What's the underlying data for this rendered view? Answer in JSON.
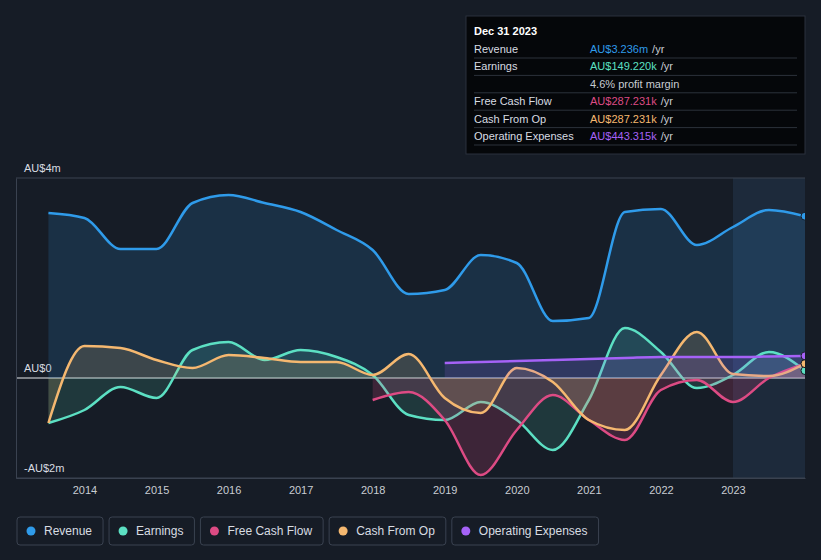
{
  "chart_data": {
    "type": "line",
    "x": [
      2013.5,
      2014,
      2014.5,
      2015,
      2015.5,
      2016,
      2016.5,
      2017,
      2017.5,
      2018,
      2018.5,
      2019,
      2019.5,
      2020,
      2020.5,
      2021,
      2021.5,
      2022,
      2022.5,
      2023,
      2023.5,
      2024
    ],
    "xlim": [
      2013.05,
      2024
    ],
    "xticks": [
      2014,
      2015,
      2016,
      2017,
      2018,
      2019,
      2020,
      2021,
      2022,
      2023
    ],
    "ylim": [
      -2,
      4
    ],
    "yticks": [
      {
        "value": 4,
        "label": "AU$4m"
      },
      {
        "value": 0,
        "label": "AU$0"
      },
      {
        "value": -2,
        "label": "-AU$2m"
      }
    ],
    "grid": true,
    "legend": "bottom",
    "highlight_x": [
      2023,
      2024
    ],
    "series": [
      {
        "name": "Revenue",
        "color": "#2f9bea",
        "values": [
          3.3,
          3.2,
          2.58,
          2.58,
          3.5,
          3.66,
          3.5,
          3.32,
          2.96,
          2.56,
          1.68,
          1.76,
          2.46,
          2.3,
          1.14,
          1.2,
          3.32,
          3.38,
          2.66,
          3.02,
          3.36,
          3.236
        ]
      },
      {
        "name": "Earnings",
        "color": "#5ce0c3",
        "values": [
          -0.9,
          -0.64,
          -0.18,
          -0.4,
          0.56,
          0.72,
          0.36,
          0.56,
          0.42,
          0.06,
          -0.74,
          -0.84,
          -0.48,
          -0.84,
          -1.44,
          -0.44,
          1.0,
          0.52,
          -0.2,
          0.06,
          0.52,
          0.149
        ]
      },
      {
        "name": "Free Cash Flow",
        "color": "#dd4b84",
        "values": [
          null,
          null,
          null,
          null,
          null,
          null,
          null,
          null,
          null,
          -0.44,
          -0.28,
          -0.84,
          -1.94,
          -1.04,
          -0.34,
          -0.84,
          -1.24,
          -0.24,
          -0.04,
          -0.48,
          0.0,
          0.287
        ]
      },
      {
        "name": "Cash From Op",
        "color": "#f5b870",
        "values": [
          -0.9,
          0.64,
          0.6,
          0.36,
          0.2,
          0.46,
          0.4,
          0.32,
          0.32,
          0.06,
          0.48,
          -0.4,
          -0.7,
          0.2,
          -0.08,
          -0.84,
          -1.04,
          0.06,
          0.92,
          0.08,
          0.04,
          0.287
        ]
      },
      {
        "name": "Operating Expenses",
        "color": "#a562f7",
        "values": [
          null,
          null,
          null,
          null,
          null,
          null,
          null,
          null,
          null,
          null,
          null,
          0.3,
          0.32,
          0.34,
          0.36,
          0.38,
          0.4,
          0.42,
          0.42,
          0.42,
          0.43,
          0.443
        ]
      }
    ],
    "tooltip": {
      "title": "Dec 31 2023",
      "rows": [
        {
          "label": "Revenue",
          "value": "AU$3.236m",
          "unit": "/yr",
          "color": "#2f9bea"
        },
        {
          "label": "Earnings",
          "value": "AU$149.220k",
          "unit": "/yr",
          "color": "#5ce0c3"
        },
        {
          "text": "4.6% profit margin"
        },
        {
          "label": "Free Cash Flow",
          "value": "AU$287.231k",
          "unit": "/yr",
          "color": "#dd4b84"
        },
        {
          "label": "Cash From Op",
          "value": "AU$287.231k",
          "unit": "/yr",
          "color": "#f5b870"
        },
        {
          "label": "Operating Expenses",
          "value": "AU$443.315k",
          "unit": "/yr",
          "color": "#a562f7"
        }
      ]
    }
  }
}
